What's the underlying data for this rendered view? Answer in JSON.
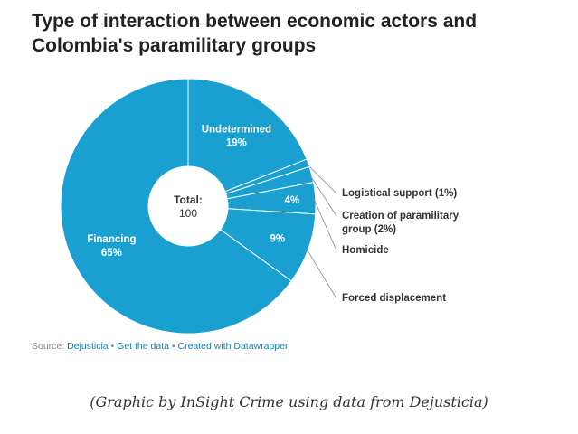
{
  "chart_data": {
    "type": "pie",
    "style": "donut",
    "title": "Type of interaction between economic actors and Colombia's paramilitary groups",
    "center_label": "Total:",
    "total": 100,
    "slices": [
      {
        "label": "Undetermined",
        "value": 19,
        "percent_label": "19%"
      },
      {
        "label": "Logistical support (1%)",
        "value": 1,
        "percent_label": ""
      },
      {
        "label": "Creation of paramilitary group (2%)",
        "value": 2,
        "percent_label": ""
      },
      {
        "label": "Homicide",
        "value": 4,
        "percent_label": "4%"
      },
      {
        "label": "Forced displacement",
        "value": 9,
        "percent_label": "9%"
      },
      {
        "label": "Financing",
        "value": 65,
        "percent_label": "65%"
      }
    ],
    "color": "#1a9fd1"
  },
  "source": {
    "prefix": "Source:",
    "name": "Dejusticia",
    "get_data": "Get the data",
    "created_with": "Created with Datawrapper",
    "separator": "•"
  },
  "caption": "(Graphic by InSight Crime using data from Dejusticia)"
}
